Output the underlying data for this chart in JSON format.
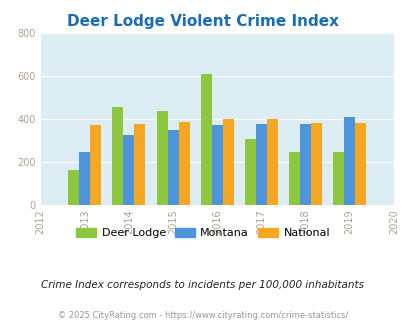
{
  "title": "Deer Lodge Violent Crime Index",
  "years": [
    2013,
    2014,
    2015,
    2016,
    2017,
    2018,
    2019
  ],
  "deer_lodge": [
    160,
    455,
    435,
    610,
    305,
    245,
    245
  ],
  "montana": [
    245,
    325,
    348,
    372,
    378,
    378,
    408
  ],
  "national": [
    370,
    378,
    383,
    398,
    398,
    380,
    380
  ],
  "xlim": [
    2012,
    2020
  ],
  "ylim": [
    0,
    800
  ],
  "yticks": [
    0,
    200,
    400,
    600,
    800
  ],
  "xticks": [
    2012,
    2013,
    2014,
    2015,
    2016,
    2017,
    2018,
    2019,
    2020
  ],
  "color_deer_lodge": "#8dc63f",
  "color_montana": "#4d94db",
  "color_national": "#f5a623",
  "bg_color": "#dceef3",
  "title_color": "#1a6db5",
  "note_text": "Crime Index corresponds to incidents per 100,000 inhabitants",
  "footer_text": "© 2025 CityRating.com - https://www.cityrating.com/crime-statistics/",
  "bar_width": 0.25,
  "legend_labels": [
    "Deer Lodge",
    "Montana",
    "National"
  ],
  "ytick_color": "#b0a090",
  "xtick_color": "#b0a090",
  "grid_color": "#ffffff"
}
